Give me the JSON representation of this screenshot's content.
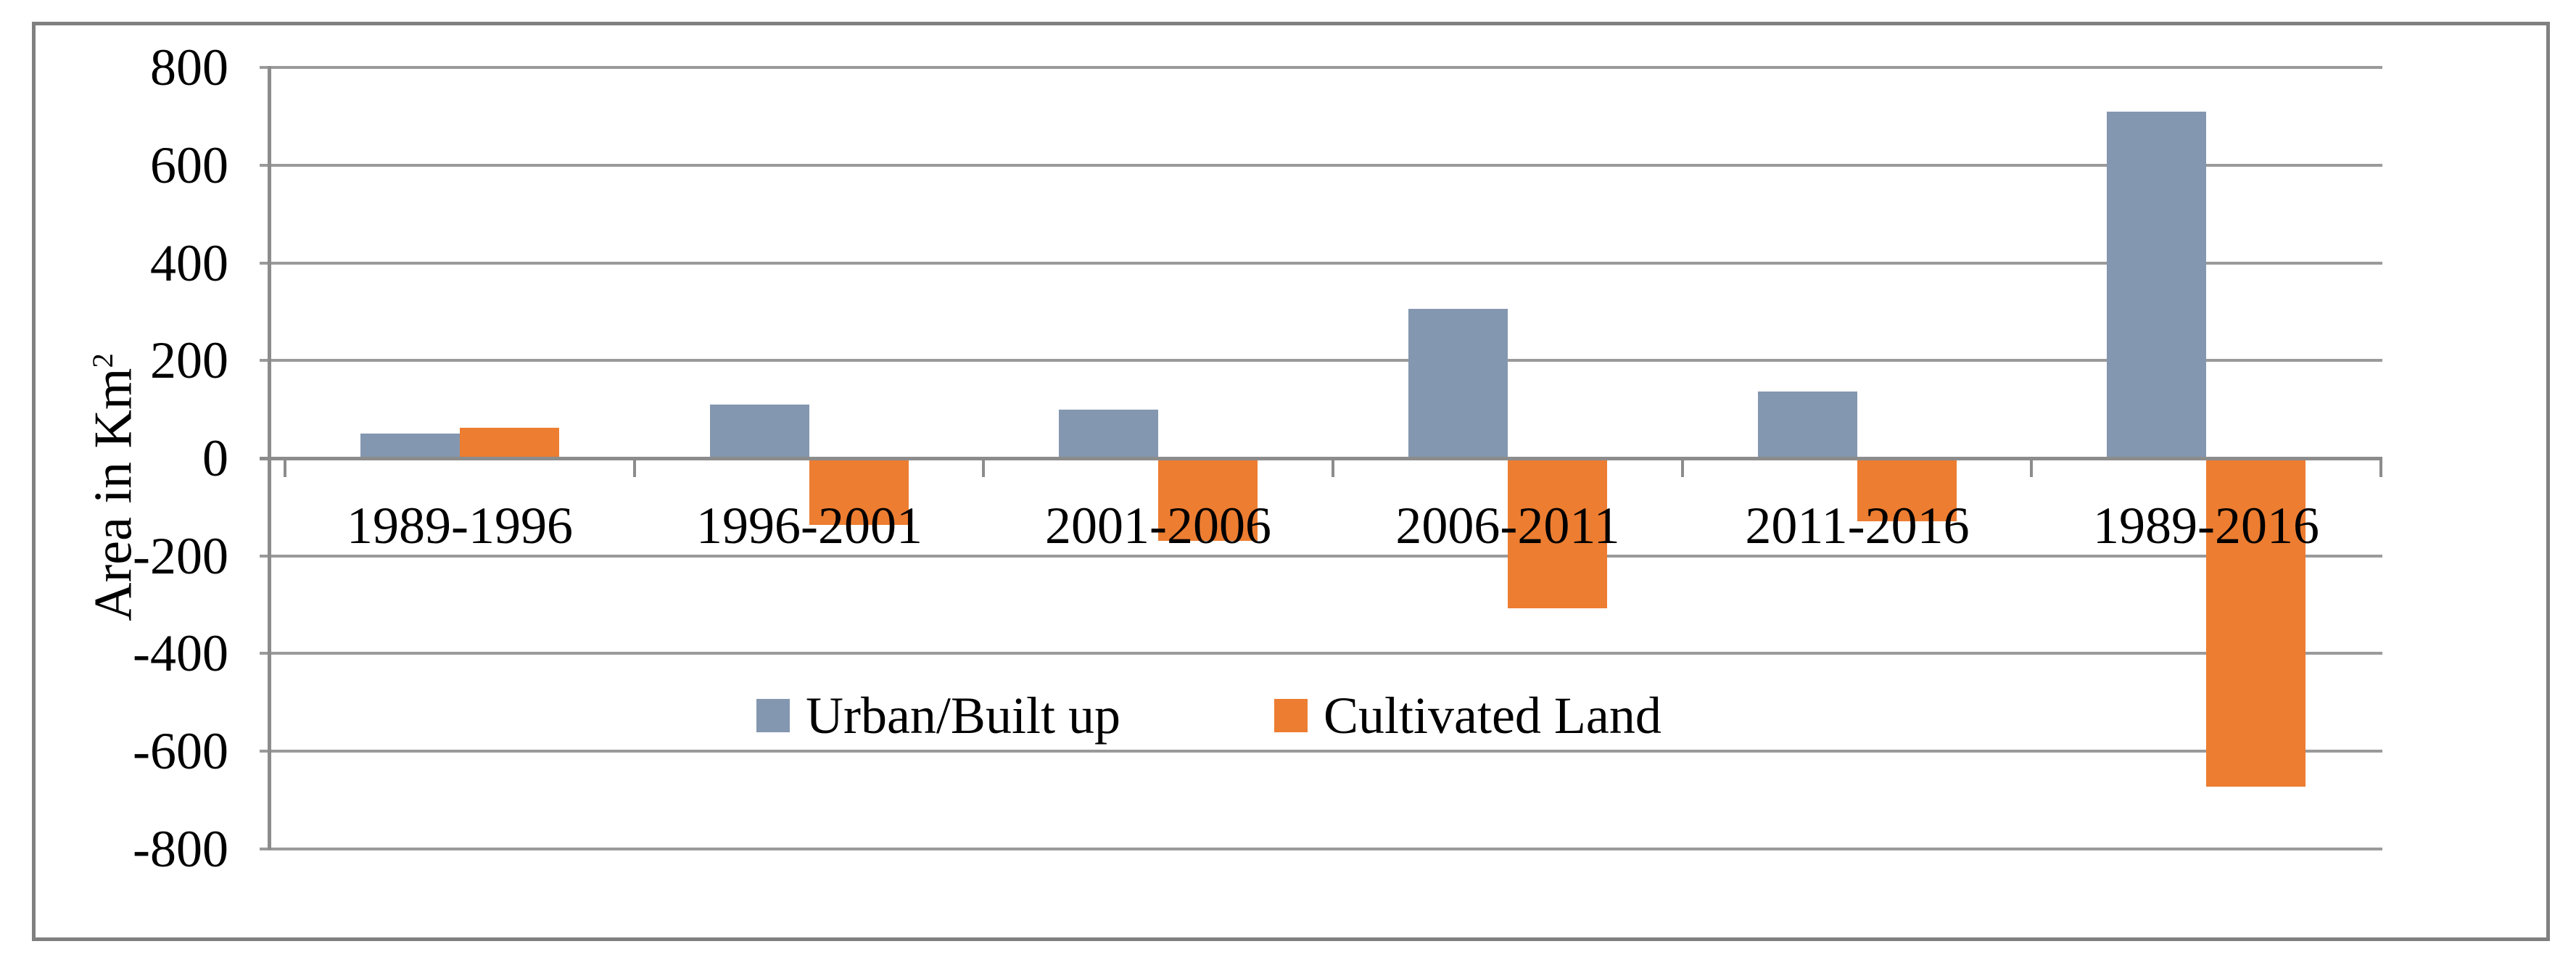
{
  "figure_type": "bar-chart-figure",
  "colors": {
    "urban_series": "#8497B0",
    "cultivated_series": "#ED7D31",
    "gridline": "#9A9A9A",
    "axis_line": "#8C8C8C",
    "figure_border": "#808080",
    "text": "#000000",
    "background": "#FFFFFF"
  },
  "chart_data": {
    "type": "bar",
    "title": "",
    "xlabel": "",
    "ylabel": "Area in Km²",
    "ylabel_base": "Area in Km",
    "ylabel_sup": "2",
    "categories": [
      "1989-1996",
      "1996-2001",
      "2001-2006",
      "2006-2011",
      "2011-2016",
      "1989-2016"
    ],
    "series": [
      {
        "name": "Urban/Built up",
        "color": "#8497B0",
        "values": [
          50,
          110,
          100,
          306,
          137,
          710
        ]
      },
      {
        "name": "Cultivated Land",
        "color": "#ED7D31",
        "values": [
          62,
          -137,
          -170,
          -308,
          -129,
          -672
        ]
      }
    ],
    "ylim": [
      -800,
      800
    ],
    "ytick_step": 200,
    "yticks": [
      800,
      600,
      400,
      200,
      0,
      -200,
      -400,
      -600,
      -800
    ],
    "ytick_labels": [
      "800",
      "600",
      "400",
      "200",
      "0",
      "-200",
      "-400",
      "-600",
      "-800"
    ],
    "grid": true,
    "legend_position": "inside-bottom-center"
  }
}
